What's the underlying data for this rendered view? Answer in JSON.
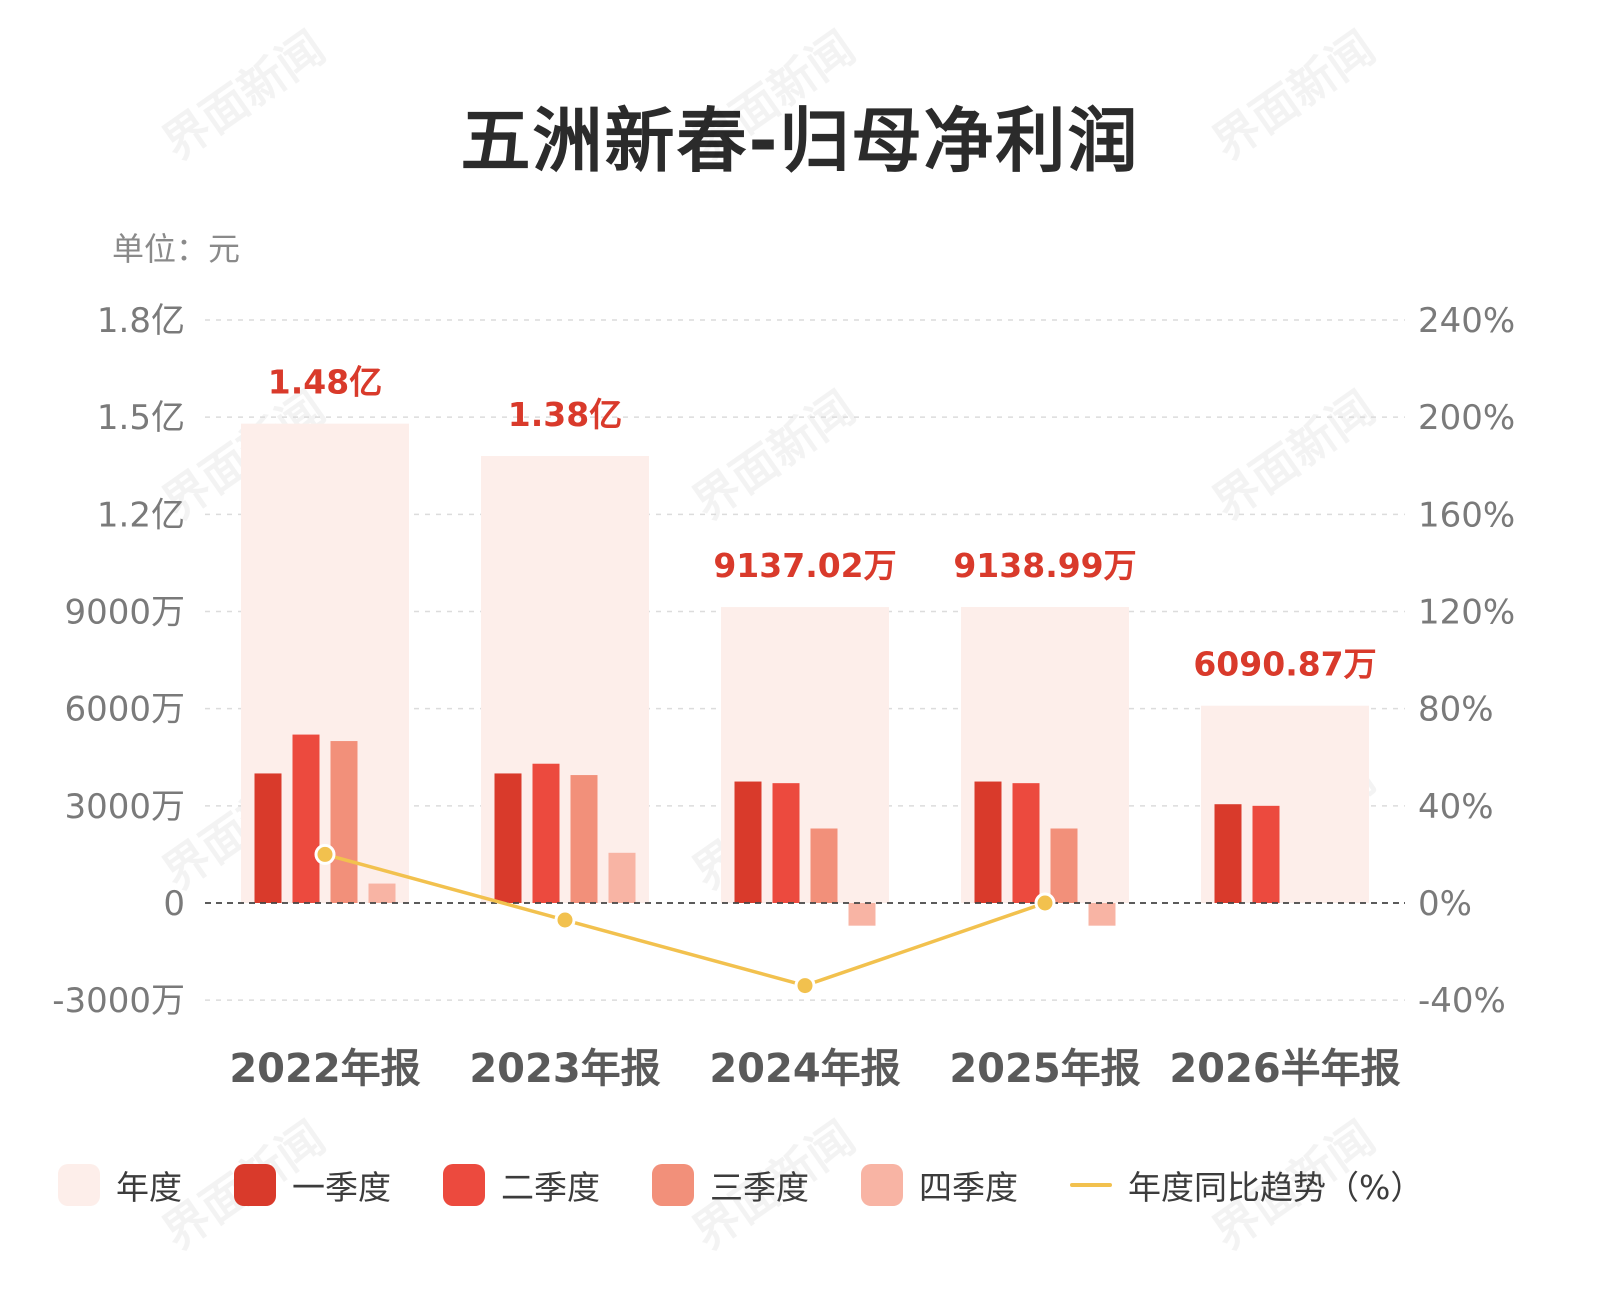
{
  "title": "五洲新春-归母净利润",
  "unit_label": "单位：元",
  "watermark_text": "界面新闻",
  "legend": [
    {
      "label": "年度",
      "color": "#fdeeea",
      "kind": "swatch"
    },
    {
      "label": "一季度",
      "color": "#d93a2b",
      "kind": "swatch"
    },
    {
      "label": "二季度",
      "color": "#ec4a3e",
      "kind": "swatch"
    },
    {
      "label": "三季度",
      "color": "#f2907a",
      "kind": "swatch"
    },
    {
      "label": "四季度",
      "color": "#f8b4a4",
      "kind": "swatch"
    },
    {
      "label": "年度同比趋势（%）",
      "color": "#f2c14e",
      "kind": "line"
    }
  ],
  "chart_data": {
    "type": "bar",
    "categories": [
      "2022年报",
      "2023年报",
      "2024年报",
      "2025年报",
      "2026半年报"
    ],
    "annual": [
      148000000,
      138000000,
      91370200,
      91389900,
      60908700
    ],
    "annual_labels": [
      "1.48亿",
      "1.38亿",
      "9137.02万",
      "9138.99万",
      "6090.87万"
    ],
    "series": [
      {
        "name": "一季度",
        "values": [
          40000000,
          40000000,
          37500000,
          37500000,
          30500000
        ]
      },
      {
        "name": "二季度",
        "values": [
          52000000,
          43000000,
          37000000,
          37000000,
          30000000
        ]
      },
      {
        "name": "三季度",
        "values": [
          50000000,
          39500000,
          23000000,
          23000000,
          null
        ]
      },
      {
        "name": "四季度",
        "values": [
          6000000,
          15500000,
          -7000000,
          -7000000,
          null
        ]
      }
    ],
    "yoy_trend": {
      "name": "年度同比趋势（%）",
      "values": [
        20,
        -7,
        -34,
        0
      ]
    },
    "ylim": [
      -30000000,
      180000000
    ],
    "y_ticks": [
      {
        "value": 180000000,
        "label": "1.8亿"
      },
      {
        "value": 150000000,
        "label": "1.5亿"
      },
      {
        "value": 120000000,
        "label": "1.2亿"
      },
      {
        "value": 90000000,
        "label": "9000万"
      },
      {
        "value": 60000000,
        "label": "6000万"
      },
      {
        "value": 30000000,
        "label": "3000万"
      },
      {
        "value": 0,
        "label": "0"
      },
      {
        "value": -30000000,
        "label": "-3000万"
      }
    ],
    "y2lim": [
      -40,
      240
    ],
    "y2_ticks": [
      {
        "value": 240,
        "label": "240%"
      },
      {
        "value": 200,
        "label": "200%"
      },
      {
        "value": 160,
        "label": "160%"
      },
      {
        "value": 120,
        "label": "120%"
      },
      {
        "value": 80,
        "label": "80%"
      },
      {
        "value": 40,
        "label": "40%"
      },
      {
        "value": 0,
        "label": "0%"
      },
      {
        "value": -40,
        "label": "-40%"
      }
    ],
    "grid": true,
    "legend_position": "bottom"
  }
}
